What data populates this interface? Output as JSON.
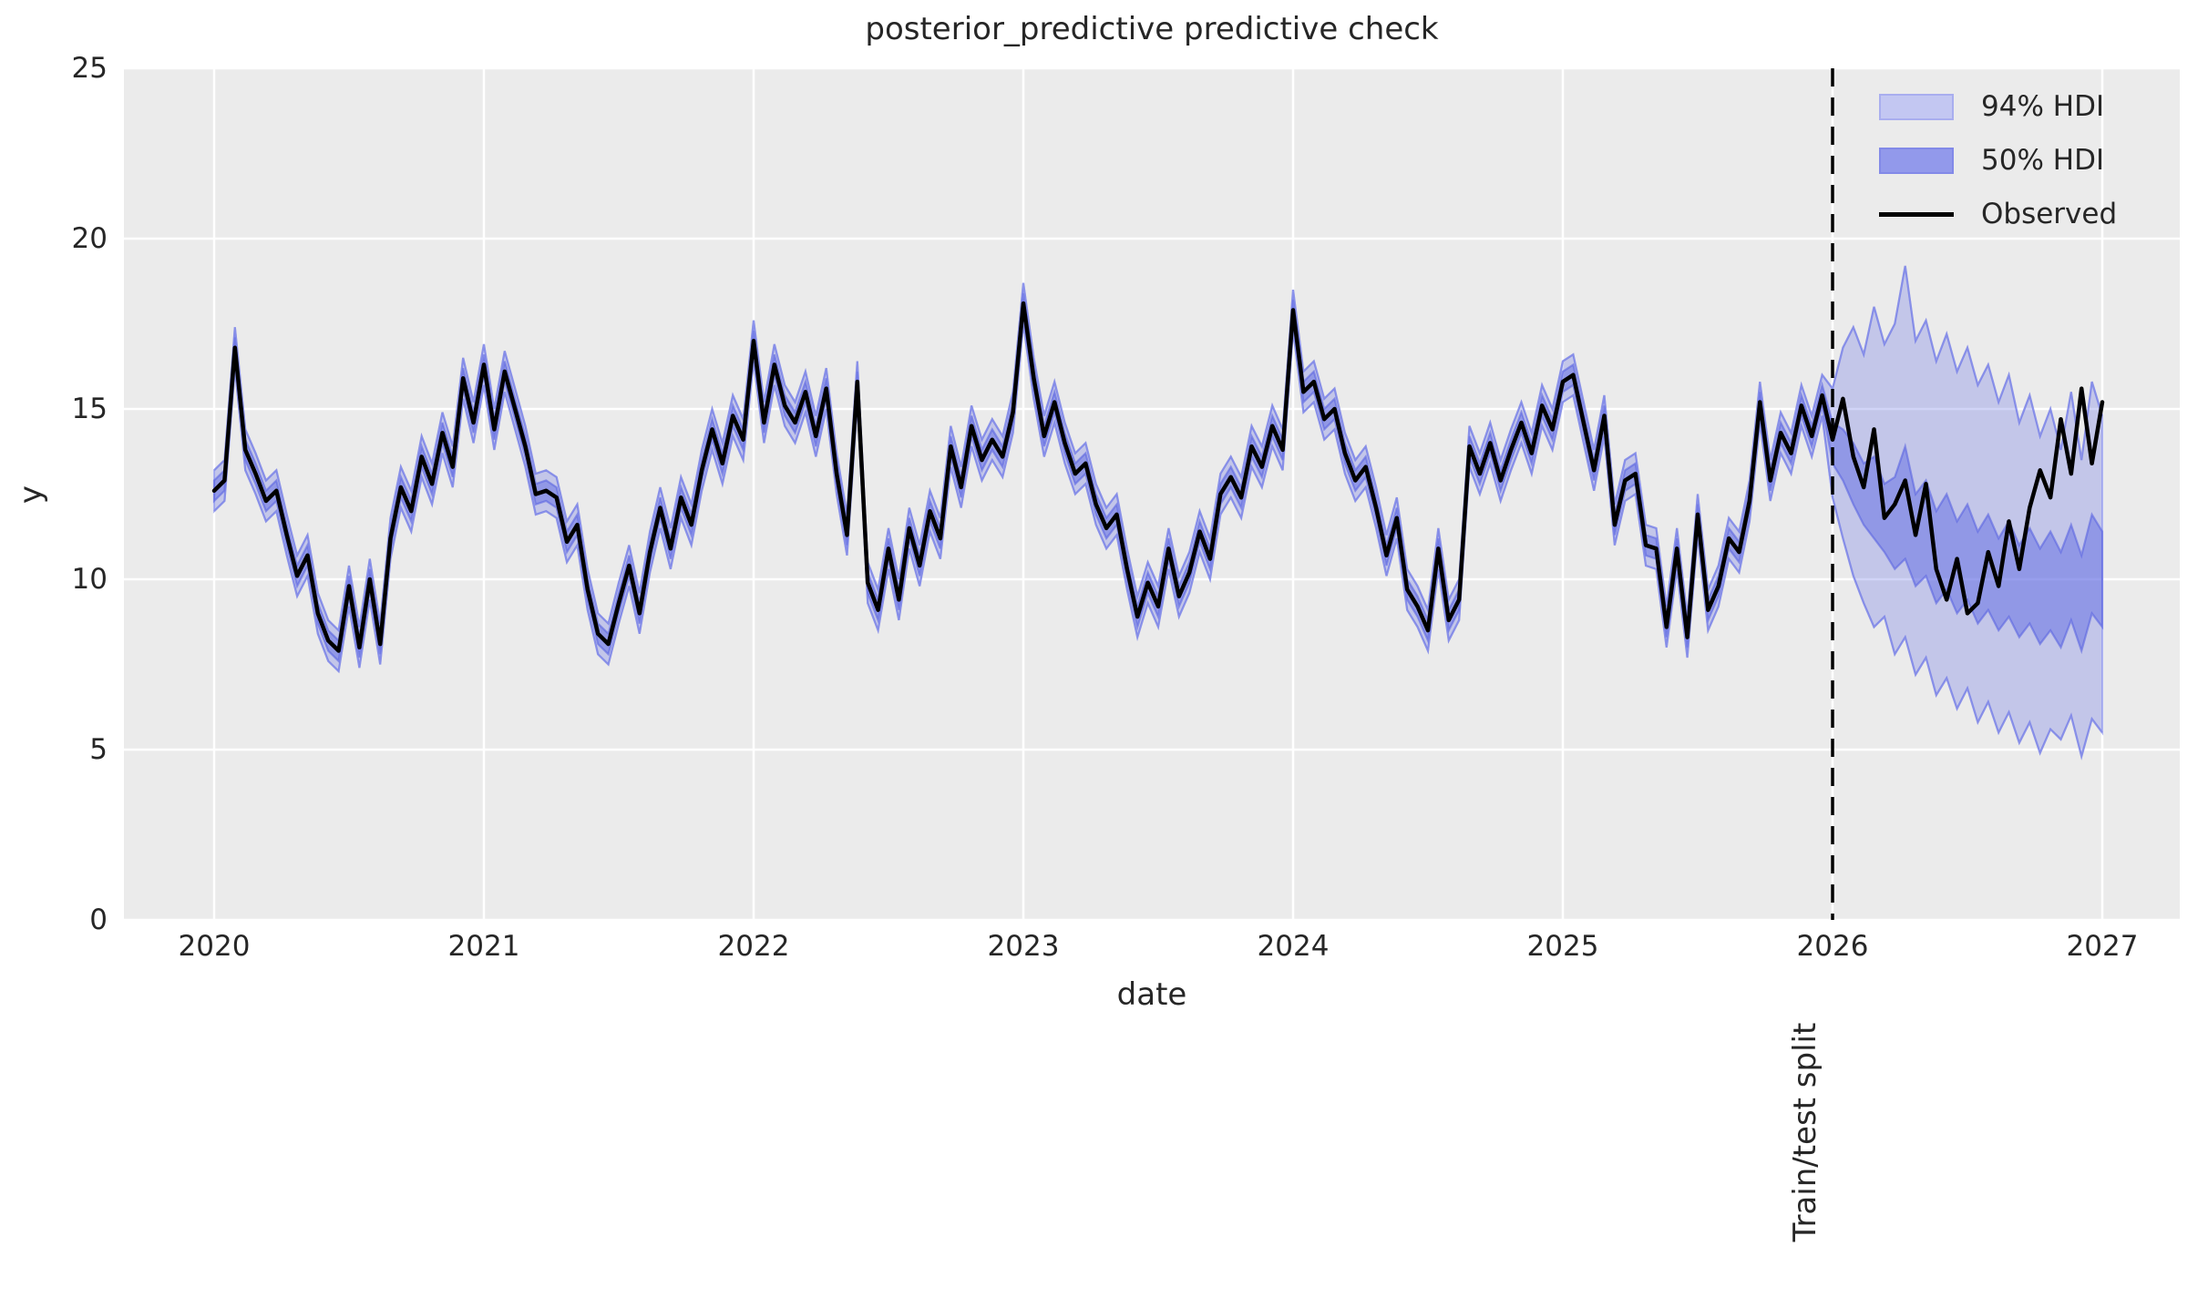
{
  "figure": {
    "title": "posterior_predictive predictive check",
    "background": "#ffffff",
    "axes_background": "#ebebeb",
    "grid_color": "#ffffff",
    "text_color": "#262626"
  },
  "chart_data": {
    "type": "line",
    "title": "posterior_predictive predictive check",
    "xlabel": "date",
    "ylabel": "y",
    "xlim": [
      2019.67,
      2027.29
    ],
    "ylim": [
      0,
      25
    ],
    "x_ticks": [
      2020,
      2021,
      2022,
      2023,
      2024,
      2025,
      2026,
      2027
    ],
    "y_ticks": [
      0,
      5,
      10,
      15,
      20,
      25
    ],
    "grid": true,
    "legend_position": "upper right",
    "legend": [
      {
        "label": "94% HDI",
        "swatch_fill": "#c3c7f2",
        "swatch_edge": "#a9aeef"
      },
      {
        "label": "50% HDI",
        "swatch_fill": "#9299eb",
        "swatch_edge": "#8289e8"
      },
      {
        "label": "Observed",
        "line_color": "#000000"
      }
    ],
    "train_test_split": {
      "x": 2026.0,
      "label": "Train/test split",
      "line_style": "dashed",
      "line_color": "#000000"
    },
    "colors": {
      "band_base": "#737ce8",
      "hdi94_fill": "rgba(115,124,232,0.33)",
      "hdi94_edge": "rgba(115,124,232,0.55)",
      "hdi50_fill": "rgba(100,110,228,0.52)",
      "hdi50_edge": "rgba(90,100,225,0.6)",
      "observed": "#000000"
    },
    "x_start": 2020.0,
    "x_step": 0.0384615385,
    "observed": [
      12.6,
      12.9,
      16.8,
      13.8,
      13.1,
      12.3,
      12.6,
      11.3,
      10.1,
      10.7,
      9.0,
      8.2,
      7.9,
      9.8,
      8.0,
      10.0,
      8.1,
      11.2,
      12.7,
      12.0,
      13.6,
      12.8,
      14.3,
      13.3,
      15.9,
      14.6,
      16.3,
      14.4,
      16.1,
      15.0,
      13.9,
      12.5,
      12.6,
      12.4,
      11.1,
      11.6,
      9.7,
      8.4,
      8.1,
      9.3,
      10.4,
      9.0,
      10.8,
      12.1,
      10.9,
      12.4,
      11.6,
      13.2,
      14.4,
      13.4,
      14.8,
      14.1,
      17.0,
      14.6,
      16.3,
      15.1,
      14.6,
      15.5,
      14.2,
      15.6,
      13.1,
      11.3,
      15.8,
      9.9,
      9.1,
      10.9,
      9.4,
      11.5,
      10.4,
      12.0,
      11.2,
      13.9,
      12.7,
      14.5,
      13.5,
      14.1,
      13.6,
      14.9,
      18.1,
      15.9,
      14.2,
      15.2,
      14.0,
      13.1,
      13.4,
      12.2,
      11.5,
      11.9,
      10.3,
      8.9,
      9.9,
      9.2,
      10.9,
      9.5,
      10.2,
      11.4,
      10.6,
      12.5,
      13.0,
      12.4,
      13.9,
      13.3,
      14.5,
      13.8,
      17.9,
      15.5,
      15.8,
      14.7,
      15.0,
      13.7,
      12.9,
      13.3,
      12.1,
      10.7,
      11.8,
      9.7,
      9.2,
      8.5,
      10.9,
      8.8,
      9.4,
      13.9,
      13.1,
      14.0,
      12.9,
      13.8,
      14.6,
      13.7,
      15.1,
      14.4,
      15.8,
      16.0,
      14.6,
      13.2,
      14.8,
      11.6,
      12.9,
      13.1,
      11.0,
      10.9,
      8.6,
      10.9,
      8.3,
      11.9,
      9.1,
      9.8,
      11.2,
      10.8,
      12.3,
      15.2,
      12.9,
      14.3,
      13.7,
      15.1,
      14.2,
      15.4,
      14.1,
      15.3,
      13.6,
      12.7,
      14.4,
      11.8,
      12.2,
      12.9,
      11.3,
      12.8,
      10.3,
      9.4,
      10.6,
      9.0,
      9.3,
      10.8,
      9.8,
      11.7,
      10.3,
      12.1,
      13.2,
      12.4,
      14.7,
      13.1,
      15.6,
      13.4,
      15.2
    ],
    "train": {
      "n_points": 156,
      "hdi94_halfwidth": 0.6,
      "hdi50_halfwidth": 0.3
    },
    "forecast": {
      "start_index": 156,
      "hdi94_upper": [
        15.6,
        16.8,
        17.4,
        16.6,
        18.0,
        16.9,
        17.5,
        19.2,
        17.0,
        17.6,
        16.4,
        17.2,
        16.1,
        16.8,
        15.7,
        16.3,
        15.2,
        16.0,
        14.6,
        15.4,
        14.2,
        15.0,
        13.8,
        15.5,
        13.5,
        15.8,
        14.8
      ],
      "hdi94_lower": [
        12.4,
        11.2,
        10.1,
        9.3,
        8.6,
        8.9,
        7.8,
        8.3,
        7.2,
        7.7,
        6.6,
        7.1,
        6.2,
        6.8,
        5.8,
        6.4,
        5.5,
        6.1,
        5.2,
        5.8,
        4.9,
        5.6,
        5.3,
        6.0,
        4.8,
        5.9,
        5.5
      ],
      "hdi50_upper": [
        14.6,
        14.4,
        14.0,
        13.4,
        13.6,
        12.8,
        13.0,
        13.9,
        12.5,
        12.9,
        12.0,
        12.5,
        11.7,
        12.2,
        11.4,
        11.9,
        11.2,
        11.7,
        11.0,
        11.5,
        10.9,
        11.4,
        10.8,
        11.6,
        10.7,
        11.9,
        11.4
      ],
      "hdi50_lower": [
        13.4,
        12.9,
        12.2,
        11.6,
        11.2,
        10.8,
        10.3,
        10.6,
        9.8,
        10.1,
        9.3,
        9.7,
        9.0,
        9.4,
        8.7,
        9.1,
        8.5,
        8.9,
        8.3,
        8.7,
        8.1,
        8.5,
        8.0,
        8.8,
        7.9,
        9.0,
        8.6
      ]
    }
  }
}
